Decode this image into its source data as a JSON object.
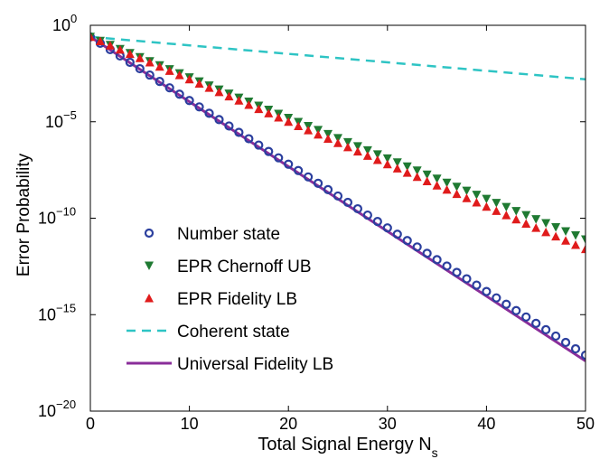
{
  "chart_data": {
    "type": "line",
    "xlabel": "Total Signal Energy N",
    "xlabel_sub": "s",
    "ylabel": "Error Probability",
    "xlim": [
      0,
      50
    ],
    "ylim_log10": [
      -20,
      0
    ],
    "y_scale": "log",
    "x_ticks": [
      "0",
      "10",
      "20",
      "30",
      "40",
      "50"
    ],
    "y_ticks": [
      {
        "base": "10",
        "exp": "0"
      },
      {
        "base": "10",
        "exp": "−5"
      },
      {
        "base": "10",
        "exp": "−10"
      },
      {
        "base": "10",
        "exp": "−15"
      },
      {
        "base": "10",
        "exp": "−20"
      }
    ],
    "legend_position": "bottom-left",
    "series": [
      {
        "name": "Number state",
        "style": "circle-markers",
        "color": "#2b3f9e",
        "x_step": 1,
        "y_log10": [
          -0.6,
          -0.93,
          -1.26,
          -1.59,
          -1.92,
          -2.25,
          -2.58,
          -2.91,
          -3.24,
          -3.57,
          -3.9,
          -4.23,
          -4.56,
          -4.89,
          -5.22,
          -5.55,
          -5.88,
          -6.21,
          -6.54,
          -6.87,
          -7.2,
          -7.53,
          -7.86,
          -8.19,
          -8.52,
          -8.85,
          -9.18,
          -9.51,
          -9.84,
          -10.17,
          -10.5,
          -10.83,
          -11.16,
          -11.49,
          -11.82,
          -12.15,
          -12.48,
          -12.81,
          -13.14,
          -13.47,
          -13.8,
          -14.13,
          -14.46,
          -14.79,
          -15.12,
          -15.45,
          -15.78,
          -16.11,
          -16.44,
          -16.77,
          -17.1
        ]
      },
      {
        "name": "EPR Chernoff UB",
        "style": "down-triangle-markers",
        "color": "#1f7a32",
        "x_step": 1,
        "y_log10": [
          -0.6,
          -0.81,
          -1.02,
          -1.23,
          -1.44,
          -1.65,
          -1.86,
          -2.07,
          -2.28,
          -2.49,
          -2.7,
          -2.91,
          -3.12,
          -3.33,
          -3.54,
          -3.75,
          -3.96,
          -4.17,
          -4.38,
          -4.59,
          -4.8,
          -5.01,
          -5.22,
          -5.43,
          -5.64,
          -5.85,
          -6.06,
          -6.27,
          -6.48,
          -6.69,
          -6.9,
          -7.11,
          -7.32,
          -7.53,
          -7.74,
          -7.95,
          -8.16,
          -8.37,
          -8.58,
          -8.79,
          -9.0,
          -9.21,
          -9.42,
          -9.63,
          -9.84,
          -10.05,
          -10.26,
          -10.47,
          -10.68,
          -10.89,
          -11.1
        ]
      },
      {
        "name": "EPR Fidelity LB",
        "style": "up-triangle-markers",
        "color": "#e01b1b",
        "x_step": 1,
        "y_log10": [
          -0.6,
          -0.82,
          -1.04,
          -1.26,
          -1.48,
          -1.7,
          -1.92,
          -2.14,
          -2.36,
          -2.58,
          -2.8,
          -3.02,
          -3.24,
          -3.46,
          -3.68,
          -3.9,
          -4.12,
          -4.34,
          -4.56,
          -4.78,
          -5.0,
          -5.22,
          -5.44,
          -5.66,
          -5.88,
          -6.1,
          -6.32,
          -6.54,
          -6.76,
          -6.98,
          -7.2,
          -7.42,
          -7.64,
          -7.86,
          -8.08,
          -8.3,
          -8.52,
          -8.74,
          -8.96,
          -9.18,
          -9.4,
          -9.62,
          -9.84,
          -10.06,
          -10.28,
          -10.5,
          -10.72,
          -10.94,
          -11.16,
          -11.38,
          -11.6
        ]
      },
      {
        "name": "Coherent state",
        "style": "dashed-line",
        "color": "#2ec4c4",
        "x": [
          0,
          50
        ],
        "y_log10": [
          -0.6,
          -2.8
        ]
      },
      {
        "name": "Universal Fidelity LB",
        "style": "solid-line",
        "color": "#8a2d9a",
        "x": [
          0,
          50
        ],
        "y_log10": [
          -0.6,
          -17.4
        ]
      }
    ]
  }
}
